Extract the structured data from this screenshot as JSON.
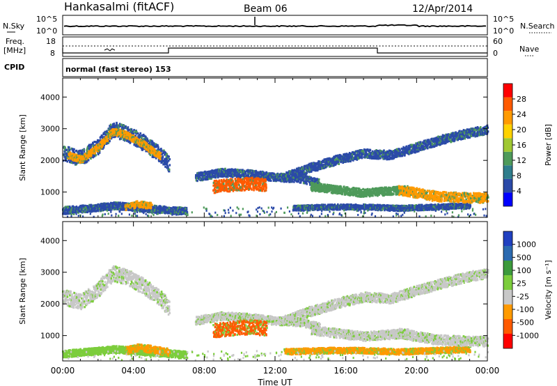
{
  "header": {
    "station": "Hankasalmi (fitACF)",
    "beam": "Beam 06",
    "date": "12/Apr/2014"
  },
  "status_panel": {
    "nsky_label": "N.Sky",
    "nsearch_label": "N.Search",
    "freq_label_line1": "Freq.",
    "freq_label_line2": "[MHz]",
    "nave_label": "Nave",
    "cpid_label": "CPID",
    "noise_ticks": [
      "10^5",
      "10^0"
    ],
    "freq_ticks": [
      "18",
      "8"
    ],
    "nave_ticks": [
      "60",
      "0"
    ],
    "cpid_text": "normal (fast stereo) 153"
  },
  "x_axis": {
    "label": "Time UT",
    "ticks": [
      "00:00",
      "04:00",
      "08:00",
      "12:00",
      "16:00",
      "20:00",
      "00:00"
    ],
    "range_hours": [
      0,
      24
    ]
  },
  "chart_data": [
    {
      "type": "heatmap",
      "name": "power",
      "ylabel": "Slant Range [km]",
      "yticks": [
        1000,
        2000,
        3000,
        4000
      ],
      "ylim": [
        200,
        4600
      ],
      "xlim": [
        0,
        24
      ],
      "colorbar": {
        "label": "Power [dB]",
        "ticks": [
          "28",
          "24",
          "20",
          "16",
          "12",
          "8",
          "4"
        ],
        "colors": [
          "#0000ff",
          "#2b4aa8",
          "#2f7d8c",
          "#4e9a5a",
          "#a0c832",
          "#ffd200",
          "#ff9a00",
          "#ff5a00",
          "#ff0000"
        ]
      },
      "bands": [
        {
          "t": [
            0.0,
            1.0,
            2.0,
            2.8,
            3.5,
            4.5,
            5.5,
            6.0
          ],
          "r": [
            2250,
            2100,
            2500,
            3000,
            2900,
            2600,
            2200,
            1900
          ],
          "w": 350,
          "c": "#2b4aa8"
        },
        {
          "t": [
            0.3,
            1.0,
            2.0,
            2.8,
            3.5,
            4.5,
            5.5
          ],
          "r": [
            2200,
            2050,
            2450,
            2950,
            2850,
            2550,
            2150
          ],
          "w": 150,
          "c": "#ff9a00"
        },
        {
          "t": [
            7.5,
            9.0,
            10.5,
            12.0,
            13.5,
            14.5
          ],
          "r": [
            1500,
            1650,
            1600,
            1500,
            1450,
            1300
          ],
          "w": 180,
          "c": "#2b4aa8"
        },
        {
          "t": [
            8.5,
            9.5,
            10.5,
            11.5
          ],
          "r": [
            1200,
            1250,
            1300,
            1250
          ],
          "w": 280,
          "c": "#ff5a00"
        },
        {
          "t": [
            12.5,
            14.0,
            15.5,
            17.0,
            18.5,
            20.0,
            21.5,
            23.0,
            24.0
          ],
          "r": [
            1500,
            1800,
            2050,
            2250,
            2200,
            2450,
            2700,
            2900,
            3000
          ],
          "w": 200,
          "c": "#2b4aa8"
        },
        {
          "t": [
            14.0,
            15.5,
            17.0,
            18.0,
            19.5
          ],
          "r": [
            1200,
            1100,
            1000,
            1050,
            1100
          ],
          "w": 180,
          "c": "#4e9a5a"
        },
        {
          "t": [
            13.0,
            15.0,
            17.0,
            19.0,
            21.0,
            23.0
          ],
          "r": [
            520,
            560,
            560,
            520,
            560,
            600
          ],
          "w": 120,
          "c": "#2b4aa8"
        },
        {
          "t": [
            19.0,
            21.0,
            23.0,
            24.0
          ],
          "r": [
            1100,
            900,
            850,
            850
          ],
          "w": 220,
          "c": "#ff9a00"
        },
        {
          "t": [
            0.0,
            1.5,
            3.0,
            4.5,
            6.0,
            7.0
          ],
          "r": [
            450,
            520,
            600,
            520,
            460,
            420
          ],
          "w": 160,
          "c": "#2b4aa8"
        },
        {
          "t": [
            3.5,
            4.2,
            5.0
          ],
          "r": [
            550,
            650,
            600
          ],
          "w": 140,
          "c": "#ff9a00"
        }
      ]
    },
    {
      "type": "heatmap",
      "name": "velocity",
      "ylabel": "Slant Range [km]",
      "yticks": [
        1000,
        2000,
        3000,
        4000
      ],
      "ylim": [
        200,
        4600
      ],
      "xlim": [
        0,
        24
      ],
      "colorbar": {
        "label": "Velocity [m s^-1]",
        "ticks": [
          "1000",
          "500",
          "100",
          "25",
          "-25",
          "-100",
          "-500",
          "-1000"
        ],
        "colors": [
          "#ff0000",
          "#ff5a00",
          "#ff9a00",
          "#c8c8c8",
          "#7ccd3c",
          "#3c9a3c",
          "#2b6ab0",
          "#2040c0"
        ]
      },
      "bands": [
        {
          "t": [
            0.0,
            1.0,
            2.0,
            2.8,
            3.5,
            4.5,
            5.5,
            6.0
          ],
          "r": [
            2250,
            2100,
            2500,
            3000,
            2900,
            2600,
            2200,
            1900
          ],
          "w": 350,
          "c": "#c8c8c8"
        },
        {
          "t": [
            7.5,
            9.0,
            10.5,
            12.0,
            13.5,
            14.5
          ],
          "r": [
            1500,
            1650,
            1600,
            1500,
            1450,
            1300
          ],
          "w": 180,
          "c": "#c8c8c8"
        },
        {
          "t": [
            8.5,
            9.5,
            10.5,
            11.5
          ],
          "r": [
            1200,
            1250,
            1300,
            1250
          ],
          "w": 320,
          "c": "#ff5a00"
        },
        {
          "t": [
            12.5,
            14.0,
            15.5,
            17.0,
            18.5,
            20.0,
            21.5,
            23.0,
            24.0
          ],
          "r": [
            1500,
            1800,
            2050,
            2250,
            2200,
            2450,
            2700,
            2900,
            3000
          ],
          "w": 220,
          "c": "#c8c8c8"
        },
        {
          "t": [
            14.0,
            15.5,
            17.0,
            18.0,
            19.5
          ],
          "r": [
            1200,
            1100,
            1000,
            1050,
            1100
          ],
          "w": 200,
          "c": "#c8c8c8"
        },
        {
          "t": [
            12.5,
            15.0,
            17.0,
            19.0,
            21.0,
            23.0
          ],
          "r": [
            520,
            560,
            560,
            520,
            560,
            600
          ],
          "w": 130,
          "c": "#ff9a00"
        },
        {
          "t": [
            19.0,
            21.0,
            23.0,
            24.0
          ],
          "r": [
            1100,
            900,
            850,
            850
          ],
          "w": 220,
          "c": "#c8c8c8"
        },
        {
          "t": [
            0.0,
            1.5,
            3.0,
            4.5,
            6.0,
            7.0
          ],
          "r": [
            450,
            520,
            600,
            520,
            460,
            420
          ],
          "w": 160,
          "c": "#7ccd3c"
        },
        {
          "t": [
            3.5,
            4.2,
            5.0,
            6.0
          ],
          "r": [
            550,
            650,
            600,
            500
          ],
          "w": 160,
          "c": "#ff9a00"
        }
      ]
    }
  ]
}
